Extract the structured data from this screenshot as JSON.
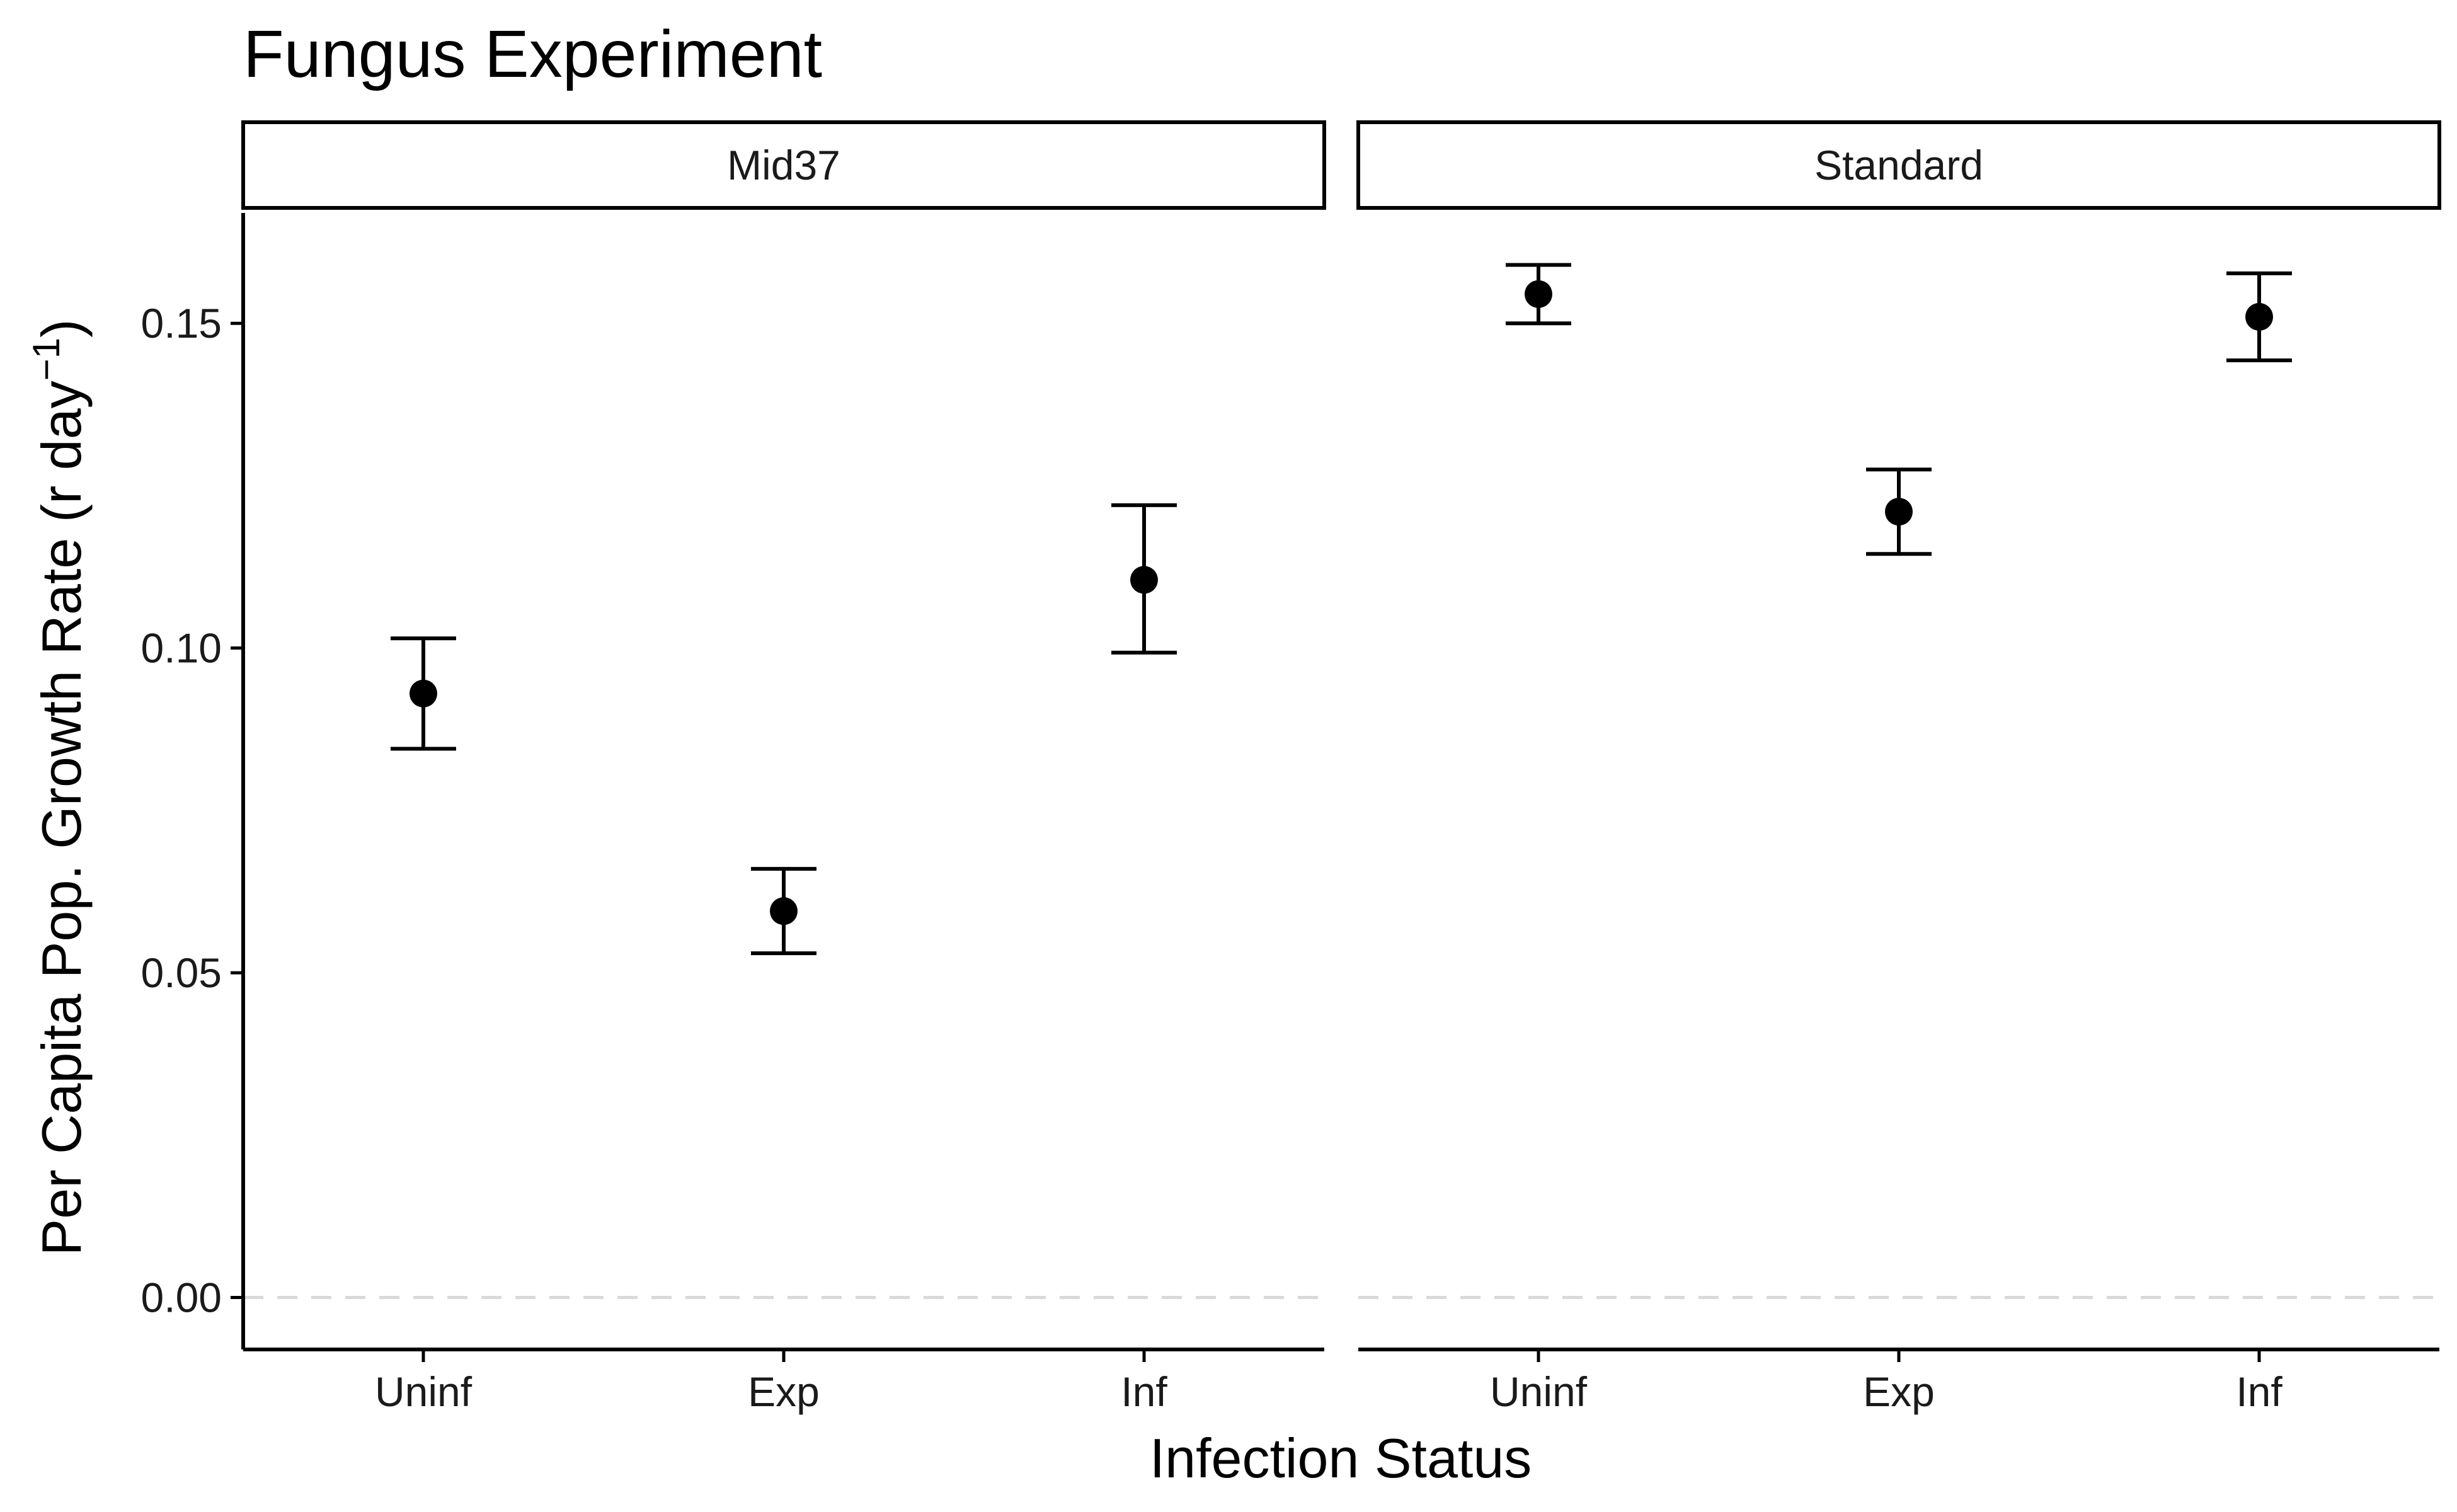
{
  "chart_data": {
    "type": "scatter",
    "title": "Fungus Experiment",
    "xlabel": "Infection Status",
    "ylabel": "Per Capita Pop. Growth Rate (r day",
    "ylabel_superscript": "−1",
    "ylabel_close": ")",
    "ylim": [
      -0.008,
      0.167
    ],
    "yticks": [
      "0.00",
      "0.05",
      "0.10",
      "0.15"
    ],
    "categories": [
      "Uninf",
      "Exp",
      "Inf"
    ],
    "reference_line": 0.0,
    "grid": false,
    "facets": [
      {
        "name": "Mid37",
        "points": [
          {
            "x": "Uninf",
            "y": 0.093,
            "ymin": 0.0845,
            "ymax": 0.1015
          },
          {
            "x": "Exp",
            "y": 0.0595,
            "ymin": 0.053,
            "ymax": 0.066
          },
          {
            "x": "Inf",
            "y": 0.1105,
            "ymin": 0.0993,
            "ymax": 0.122
          }
        ]
      },
      {
        "name": "Standard",
        "points": [
          {
            "x": "Uninf",
            "y": 0.1545,
            "ymin": 0.15,
            "ymax": 0.159
          },
          {
            "x": "Exp",
            "y": 0.121,
            "ymin": 0.1145,
            "ymax": 0.1275
          },
          {
            "x": "Inf",
            "y": 0.151,
            "ymin": 0.1443,
            "ymax": 0.1577
          }
        ]
      }
    ]
  }
}
